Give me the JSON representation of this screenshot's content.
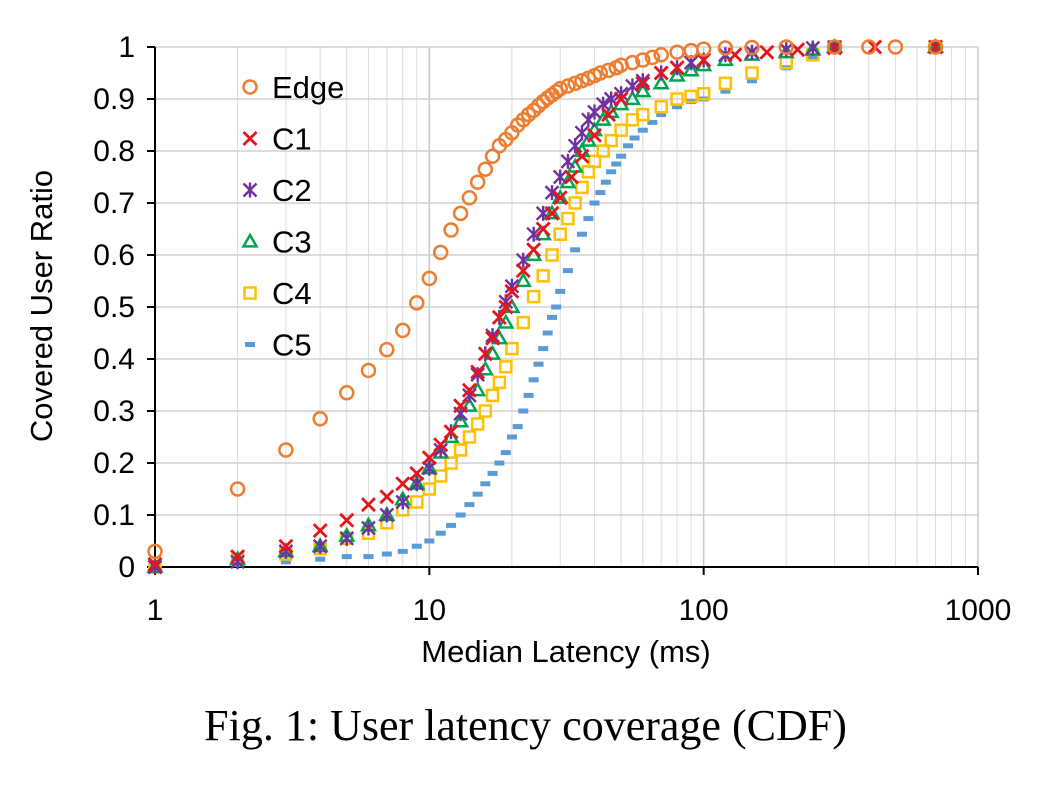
{
  "caption": "Fig. 1: User latency coverage (CDF)",
  "chart_data": {
    "type": "scatter",
    "xscale": "log",
    "xlim": [
      1,
      1000
    ],
    "ylim": [
      0,
      1
    ],
    "xlabel": "Median Latency (ms)",
    "ylabel": "Covered User Ratio",
    "xticks": [
      "1",
      "10",
      "100",
      "1000"
    ],
    "yticks": [
      "0",
      "0.1",
      "0.2",
      "0.3",
      "0.4",
      "0.5",
      "0.6",
      "0.7",
      "0.8",
      "0.9",
      "1"
    ],
    "grid": true,
    "legend_position": "top-left",
    "series": [
      {
        "name": "Edge",
        "marker": "circle",
        "color": "#ED7D31",
        "x": [
          1,
          2,
          3,
          4,
          5,
          6,
          7,
          8,
          9,
          10,
          11,
          12,
          13,
          14,
          15,
          16,
          17,
          18,
          19,
          20,
          21,
          22,
          23,
          24,
          25,
          26,
          27,
          28,
          29,
          30,
          32,
          34,
          36,
          38,
          40,
          42,
          45,
          48,
          50,
          55,
          60,
          65,
          70,
          80,
          90,
          100,
          120,
          150,
          200,
          300,
          400,
          500,
          700
        ],
        "y": [
          0.03,
          0.15,
          0.225,
          0.285,
          0.335,
          0.378,
          0.418,
          0.455,
          0.508,
          0.555,
          0.605,
          0.648,
          0.68,
          0.71,
          0.74,
          0.765,
          0.79,
          0.81,
          0.822,
          0.835,
          0.85,
          0.86,
          0.87,
          0.878,
          0.887,
          0.895,
          0.902,
          0.908,
          0.914,
          0.92,
          0.925,
          0.93,
          0.935,
          0.94,
          0.945,
          0.95,
          0.955,
          0.96,
          0.965,
          0.97,
          0.975,
          0.98,
          0.985,
          0.99,
          0.993,
          0.996,
          0.998,
          0.999,
          1.0,
          1.0,
          1.0,
          1.0,
          1.0
        ]
      },
      {
        "name": "C1",
        "marker": "x",
        "color": "#E8141B",
        "x": [
          1,
          2,
          3,
          4,
          5,
          6,
          7,
          8,
          9,
          10,
          11,
          12,
          13,
          14,
          15,
          16,
          17,
          18,
          19,
          20,
          22,
          24,
          26,
          28,
          30,
          33,
          36,
          40,
          45,
          50,
          60,
          70,
          80,
          100,
          130,
          170,
          220,
          300,
          420,
          700
        ],
        "y": [
          0.005,
          0.02,
          0.04,
          0.07,
          0.09,
          0.12,
          0.135,
          0.16,
          0.18,
          0.21,
          0.235,
          0.26,
          0.31,
          0.34,
          0.375,
          0.41,
          0.44,
          0.48,
          0.5,
          0.53,
          0.57,
          0.61,
          0.65,
          0.68,
          0.71,
          0.75,
          0.79,
          0.83,
          0.87,
          0.9,
          0.93,
          0.95,
          0.96,
          0.975,
          0.985,
          0.99,
          0.995,
          0.998,
          1.0,
          1.0
        ]
      },
      {
        "name": "C2",
        "marker": "star",
        "color": "#7030A0",
        "x": [
          1,
          2,
          3,
          4,
          5,
          6,
          7,
          8,
          9,
          10,
          11,
          12,
          13,
          14,
          15,
          16,
          17,
          18,
          19,
          20,
          22,
          24,
          26,
          28,
          30,
          32,
          34,
          36,
          38,
          40,
          43,
          46,
          50,
          55,
          60,
          70,
          80,
          90,
          100,
          120,
          150,
          200,
          250,
          300,
          700
        ],
        "y": [
          0.0,
          0.01,
          0.03,
          0.04,
          0.055,
          0.075,
          0.1,
          0.125,
          0.16,
          0.19,
          0.225,
          0.26,
          0.295,
          0.33,
          0.37,
          0.41,
          0.445,
          0.48,
          0.51,
          0.54,
          0.59,
          0.64,
          0.68,
          0.72,
          0.75,
          0.78,
          0.81,
          0.835,
          0.86,
          0.875,
          0.89,
          0.9,
          0.91,
          0.925,
          0.935,
          0.95,
          0.96,
          0.97,
          0.975,
          0.985,
          0.99,
          0.995,
          0.998,
          1.0,
          1.0
        ]
      },
      {
        "name": "C3",
        "marker": "triangle",
        "color": "#00A550",
        "x": [
          1,
          2,
          3,
          4,
          5,
          6,
          7,
          8,
          9,
          10,
          11,
          12,
          13,
          14,
          15,
          16,
          17,
          18,
          19,
          20,
          22,
          24,
          26,
          28,
          30,
          32,
          34,
          36,
          38,
          40,
          43,
          46,
          50,
          55,
          60,
          70,
          80,
          90,
          100,
          120,
          150,
          200,
          250,
          300,
          700
        ],
        "y": [
          0.0,
          0.015,
          0.03,
          0.04,
          0.06,
          0.08,
          0.1,
          0.13,
          0.16,
          0.19,
          0.22,
          0.25,
          0.28,
          0.31,
          0.34,
          0.38,
          0.41,
          0.44,
          0.47,
          0.5,
          0.55,
          0.6,
          0.64,
          0.68,
          0.71,
          0.74,
          0.77,
          0.8,
          0.82,
          0.84,
          0.86,
          0.875,
          0.89,
          0.9,
          0.915,
          0.93,
          0.945,
          0.955,
          0.965,
          0.975,
          0.985,
          0.99,
          0.995,
          1.0,
          1.0
        ]
      },
      {
        "name": "C4",
        "marker": "square",
        "color": "#FFC000",
        "x": [
          1,
          2,
          3,
          4,
          5,
          6,
          7,
          8,
          9,
          10,
          11,
          12,
          13,
          14,
          15,
          16,
          17,
          18,
          19,
          20,
          22,
          24,
          26,
          28,
          30,
          32,
          34,
          36,
          38,
          40,
          43,
          46,
          50,
          55,
          60,
          70,
          80,
          90,
          100,
          120,
          150,
          200,
          250,
          300,
          700
        ],
        "y": [
          0.0,
          0.015,
          0.025,
          0.035,
          0.055,
          0.065,
          0.085,
          0.11,
          0.125,
          0.15,
          0.175,
          0.2,
          0.225,
          0.25,
          0.275,
          0.3,
          0.33,
          0.355,
          0.385,
          0.42,
          0.47,
          0.52,
          0.56,
          0.6,
          0.64,
          0.67,
          0.7,
          0.73,
          0.76,
          0.78,
          0.8,
          0.82,
          0.84,
          0.86,
          0.87,
          0.885,
          0.9,
          0.905,
          0.91,
          0.93,
          0.95,
          0.97,
          0.985,
          1.0,
          1.0
        ]
      },
      {
        "name": "C5",
        "marker": "dash",
        "color": "#5B9BD5",
        "x": [
          1,
          2,
          3,
          4,
          5,
          6,
          7,
          8,
          9,
          10,
          11,
          12,
          13,
          14,
          15,
          16,
          17,
          18,
          19,
          20,
          21,
          22,
          23,
          24,
          25,
          26,
          27,
          28,
          29,
          30,
          32,
          34,
          36,
          38,
          40,
          42,
          44,
          46,
          48,
          50,
          53,
          56,
          60,
          65,
          70,
          80,
          90,
          100,
          120,
          150,
          200,
          250,
          300,
          700
        ],
        "y": [
          0.0,
          0.005,
          0.01,
          0.015,
          0.02,
          0.02,
          0.025,
          0.03,
          0.04,
          0.05,
          0.065,
          0.08,
          0.1,
          0.12,
          0.14,
          0.16,
          0.18,
          0.2,
          0.22,
          0.25,
          0.27,
          0.3,
          0.33,
          0.36,
          0.39,
          0.42,
          0.45,
          0.48,
          0.5,
          0.53,
          0.57,
          0.61,
          0.64,
          0.67,
          0.7,
          0.72,
          0.74,
          0.76,
          0.775,
          0.79,
          0.81,
          0.825,
          0.84,
          0.855,
          0.87,
          0.885,
          0.895,
          0.9,
          0.915,
          0.935,
          0.96,
          0.98,
          0.995,
          1.0
        ]
      }
    ]
  }
}
